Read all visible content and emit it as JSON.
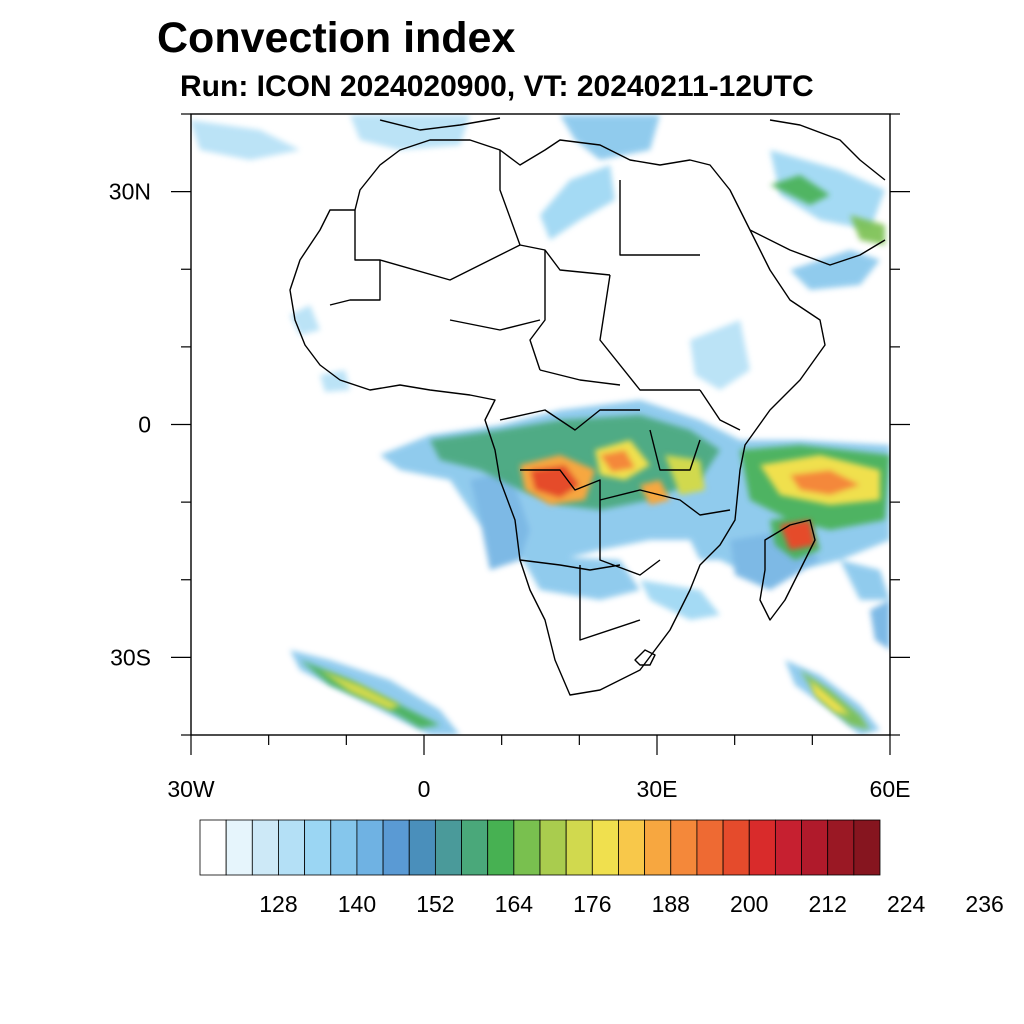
{
  "title": "Convection index",
  "subtitle": "Run: ICON 2024020900,  VT: 20240211-12UTC",
  "axes": {
    "x_ticks": [
      {
        "lon": -30,
        "label": "30W"
      },
      {
        "lon": 0,
        "label": "0"
      },
      {
        "lon": 30,
        "label": "30E"
      },
      {
        "lon": 60,
        "label": "60E"
      }
    ],
    "y_ticks": [
      {
        "lat": 30,
        "label": "30N"
      },
      {
        "lat": 0,
        "label": "0"
      },
      {
        "lat": -30,
        "label": "30S"
      }
    ]
  },
  "colorbar": {
    "colors": [
      "#ffffff",
      "#e6f5fc",
      "#cde9f7",
      "#b4e0f6",
      "#9bd6f3",
      "#85c6ec",
      "#6fb2e3",
      "#5a9ad4",
      "#4a8fbb",
      "#4a9a9a",
      "#4aa87a",
      "#47b152",
      "#79c04f",
      "#a9cc4e",
      "#d1d94e",
      "#f0e04e",
      "#f8c84a",
      "#f7a740",
      "#f4883a",
      "#ee6a33",
      "#e54b2c",
      "#d92b2b",
      "#c62030",
      "#b01a2b",
      "#9a1824",
      "#86151f"
    ],
    "labels": [
      {
        "value": 128,
        "text": "128"
      },
      {
        "value": 140,
        "text": "140"
      },
      {
        "value": 152,
        "text": "152"
      },
      {
        "value": 164,
        "text": "164"
      },
      {
        "value": 176,
        "text": "176"
      },
      {
        "value": 188,
        "text": "188"
      },
      {
        "value": 200,
        "text": "200"
      },
      {
        "value": 212,
        "text": "212"
      },
      {
        "value": 224,
        "text": "224"
      },
      {
        "value": 236,
        "text": "236"
      }
    ]
  },
  "map": {
    "lon_range": [
      -30,
      60
    ],
    "lat_range": [
      -40,
      40
    ]
  }
}
